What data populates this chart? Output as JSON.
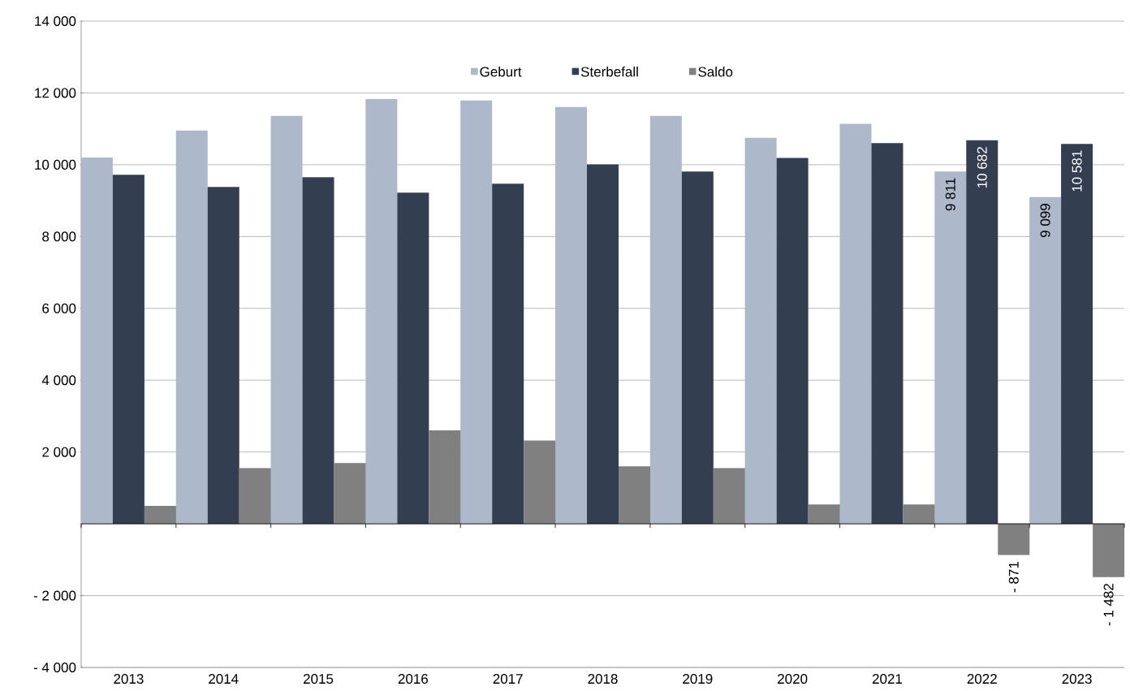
{
  "chart_data": {
    "type": "bar",
    "categories": [
      "2013",
      "2014",
      "2015",
      "2016",
      "2017",
      "2018",
      "2019",
      "2020",
      "2021",
      "2022",
      "2023"
    ],
    "series": [
      {
        "name": "Geburt",
        "color": "#adb9ca",
        "values": [
          10200,
          10950,
          11360,
          11830,
          11790,
          11610,
          11360,
          10750,
          11140,
          9811,
          9099
        ],
        "value_labels": [
          null,
          null,
          null,
          null,
          null,
          null,
          null,
          null,
          null,
          "9 811",
          "9 099"
        ]
      },
      {
        "name": "Sterbefall",
        "color": "#333f50",
        "values": [
          9720,
          9380,
          9650,
          9220,
          9470,
          10010,
          9810,
          10190,
          10600,
          10682,
          10581
        ],
        "value_labels": [
          null,
          null,
          null,
          null,
          null,
          null,
          null,
          null,
          null,
          "10 682",
          "10 581"
        ]
      },
      {
        "name": "Saldo",
        "color": "#808080",
        "values": [
          500,
          1550,
          1690,
          2600,
          2320,
          1600,
          1550,
          540,
          540,
          -871,
          -1482
        ],
        "value_labels": [
          null,
          null,
          null,
          null,
          null,
          null,
          null,
          null,
          null,
          "- 871",
          "- 1 482"
        ]
      }
    ],
    "ylim": [
      -4000,
      14000
    ],
    "yticks": [
      {
        "value": -4000,
        "label": "- 4 000"
      },
      {
        "value": -2000,
        "label": "- 2 000"
      },
      {
        "value": 0,
        "label": null
      },
      {
        "value": 2000,
        "label": "2 000"
      },
      {
        "value": 4000,
        "label": "4 000"
      },
      {
        "value": 6000,
        "label": "6 000"
      },
      {
        "value": 8000,
        "label": "8 000"
      },
      {
        "value": 10000,
        "label": "10 000"
      },
      {
        "value": 12000,
        "label": "12 000"
      },
      {
        "value": 14000,
        "label": "14 000"
      }
    ],
    "grid": "y",
    "legend": "top"
  }
}
